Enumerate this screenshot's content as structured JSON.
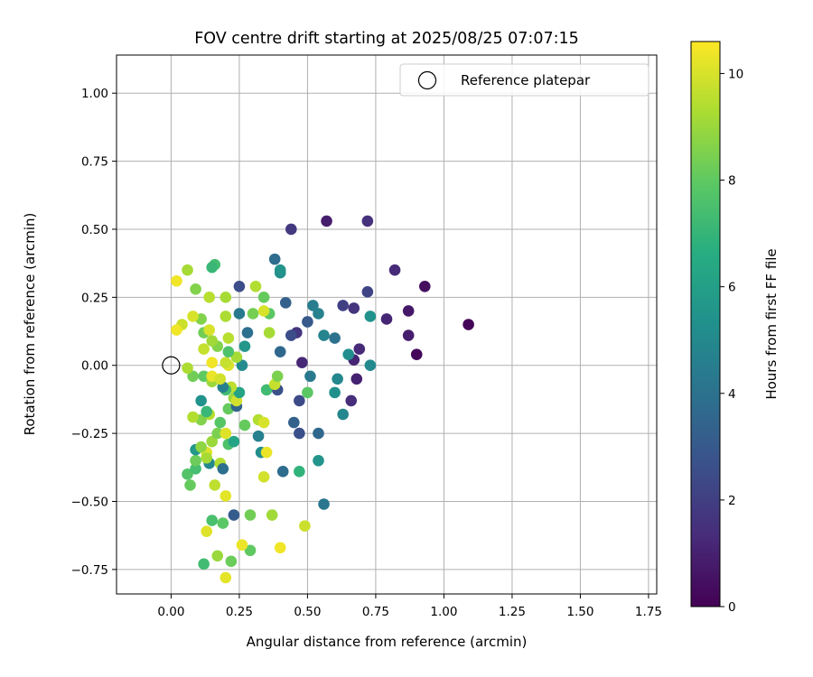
{
  "chart_data": {
    "type": "scatter",
    "title": "FOV centre drift starting at 2025/08/25 07:07:15",
    "xlabel": "Angular distance from reference (arcmin)",
    "ylabel": "Rotation from reference (arcmin)",
    "xlim": [
      -0.2,
      1.78
    ],
    "ylim": [
      -0.84,
      1.14
    ],
    "xticks": [
      0.0,
      0.25,
      0.5,
      0.75,
      1.0,
      1.25,
      1.5,
      1.75
    ],
    "xtick_labels": [
      "0.00",
      "0.25",
      "0.50",
      "0.75",
      "1.00",
      "1.25",
      "1.50",
      "1.75"
    ],
    "yticks": [
      -0.75,
      -0.5,
      -0.25,
      0.0,
      0.25,
      0.5,
      0.75,
      1.0
    ],
    "ytick_labels": [
      "−0.75",
      "−0.50",
      "−0.25",
      "0.00",
      "0.25",
      "0.50",
      "0.75",
      "1.00"
    ],
    "grid": true,
    "colormap": "viridis",
    "colorbar": {
      "label": "Hours from first FF file",
      "range": [
        0,
        10.6
      ],
      "ticks": [
        0,
        2,
        4,
        6,
        8,
        10
      ],
      "tick_labels": [
        "0",
        "2",
        "4",
        "6",
        "8",
        "10"
      ]
    },
    "legend": {
      "placement": "top-right",
      "entries": [
        {
          "label": "Reference platepar",
          "marker": "open-circle"
        }
      ]
    },
    "reference_point": {
      "x": 0.0,
      "y": 0.0
    },
    "points": [
      {
        "x": 1.09,
        "y": 0.15,
        "c": 0.1
      },
      {
        "x": 0.9,
        "y": 0.04,
        "c": 0.2
      },
      {
        "x": 0.93,
        "y": 0.29,
        "c": 0.4
      },
      {
        "x": 0.87,
        "y": 0.2,
        "c": 0.7
      },
      {
        "x": 0.87,
        "y": 0.11,
        "c": 0.9
      },
      {
        "x": 0.79,
        "y": 0.17,
        "c": 1.1
      },
      {
        "x": 0.82,
        "y": 0.35,
        "c": 1.3
      },
      {
        "x": 0.72,
        "y": 0.53,
        "c": 1.5
      },
      {
        "x": 0.57,
        "y": 0.53,
        "c": 0.9
      },
      {
        "x": 0.44,
        "y": 0.5,
        "c": 1.8
      },
      {
        "x": 0.69,
        "y": 0.06,
        "c": 1.3
      },
      {
        "x": 0.68,
        "y": -0.05,
        "c": 1.0
      },
      {
        "x": 0.67,
        "y": 0.02,
        "c": 1.1
      },
      {
        "x": 0.66,
        "y": -0.13,
        "c": 1.4
      },
      {
        "x": 0.67,
        "y": 0.21,
        "c": 1.6
      },
      {
        "x": 0.63,
        "y": 0.22,
        "c": 2.0
      },
      {
        "x": 0.72,
        "y": 0.27,
        "c": 2.2
      },
      {
        "x": 0.48,
        "y": 0.01,
        "c": 1.2
      },
      {
        "x": 0.47,
        "y": -0.13,
        "c": 2.4
      },
      {
        "x": 0.47,
        "y": -0.25,
        "c": 2.6
      },
      {
        "x": 0.45,
        "y": -0.21,
        "c": 3.3
      },
      {
        "x": 0.46,
        "y": 0.12,
        "c": 1.7
      },
      {
        "x": 0.44,
        "y": 0.11,
        "c": 2.5
      },
      {
        "x": 0.5,
        "y": 0.16,
        "c": 3.0
      },
      {
        "x": 0.54,
        "y": -0.25,
        "c": 3.6
      },
      {
        "x": 0.56,
        "y": -0.51,
        "c": 4.2
      },
      {
        "x": 0.41,
        "y": -0.39,
        "c": 3.8
      },
      {
        "x": 0.39,
        "y": -0.09,
        "c": 2.6
      },
      {
        "x": 0.4,
        "y": 0.05,
        "c": 3.6
      },
      {
        "x": 0.42,
        "y": 0.23,
        "c": 3.3
      },
      {
        "x": 0.38,
        "y": 0.39,
        "c": 3.8
      },
      {
        "x": 0.4,
        "y": 0.34,
        "c": 5.2
      },
      {
        "x": 0.4,
        "y": 0.35,
        "c": 5.5
      },
      {
        "x": 0.51,
        "y": -0.04,
        "c": 4.3
      },
      {
        "x": 0.52,
        "y": 0.22,
        "c": 4.5
      },
      {
        "x": 0.54,
        "y": 0.19,
        "c": 4.7
      },
      {
        "x": 0.56,
        "y": 0.11,
        "c": 4.8
      },
      {
        "x": 0.6,
        "y": 0.1,
        "c": 4.0
      },
      {
        "x": 0.61,
        "y": -0.05,
        "c": 4.9
      },
      {
        "x": 0.6,
        "y": -0.1,
        "c": 5.3
      },
      {
        "x": 0.63,
        "y": -0.18,
        "c": 4.9
      },
      {
        "x": 0.65,
        "y": 0.04,
        "c": 5.2
      },
      {
        "x": 0.73,
        "y": 0.18,
        "c": 5.4
      },
      {
        "x": 0.73,
        "y": 0.0,
        "c": 5.0
      },
      {
        "x": 0.54,
        "y": -0.35,
        "c": 5.5
      },
      {
        "x": 0.47,
        "y": -0.39,
        "c": 6.9
      },
      {
        "x": 0.5,
        "y": -0.1,
        "c": 7.9
      },
      {
        "x": 0.35,
        "y": -0.09,
        "c": 7.3
      },
      {
        "x": 0.36,
        "y": 0.19,
        "c": 7.9
      },
      {
        "x": 0.34,
        "y": 0.25,
        "c": 8.1
      },
      {
        "x": 0.3,
        "y": 0.19,
        "c": 8.4
      },
      {
        "x": 0.31,
        "y": 0.29,
        "c": 9.4
      },
      {
        "x": 0.34,
        "y": 0.2,
        "c": 10.0
      },
      {
        "x": 0.36,
        "y": 0.12,
        "c": 9.2
      },
      {
        "x": 0.38,
        "y": -0.07,
        "c": 9.7
      },
      {
        "x": 0.39,
        "y": -0.04,
        "c": 8.5
      },
      {
        "x": 0.33,
        "y": -0.32,
        "c": 5.2
      },
      {
        "x": 0.32,
        "y": -0.26,
        "c": 4.6
      },
      {
        "x": 0.35,
        "y": -0.32,
        "c": 10.3
      },
      {
        "x": 0.34,
        "y": -0.41,
        "c": 9.9
      },
      {
        "x": 0.32,
        "y": -0.2,
        "c": 9.4
      },
      {
        "x": 0.34,
        "y": -0.21,
        "c": 10.0
      },
      {
        "x": 0.37,
        "y": -0.55,
        "c": 9.1
      },
      {
        "x": 0.4,
        "y": -0.67,
        "c": 10.4
      },
      {
        "x": 0.49,
        "y": -0.59,
        "c": 9.8
      },
      {
        "x": 0.29,
        "y": -0.55,
        "c": 8.3
      },
      {
        "x": 0.29,
        "y": -0.68,
        "c": 8.0
      },
      {
        "x": 0.26,
        "y": -0.66,
        "c": 10.3
      },
      {
        "x": 0.22,
        "y": -0.72,
        "c": 8.2
      },
      {
        "x": 0.2,
        "y": -0.78,
        "c": 10.2
      },
      {
        "x": 0.17,
        "y": -0.7,
        "c": 9.0
      },
      {
        "x": 0.12,
        "y": -0.73,
        "c": 7.3
      },
      {
        "x": 0.15,
        "y": -0.57,
        "c": 7.5
      },
      {
        "x": 0.19,
        "y": -0.58,
        "c": 7.9
      },
      {
        "x": 0.13,
        "y": -0.61,
        "c": 10.1
      },
      {
        "x": 0.23,
        "y": -0.55,
        "c": 3.1
      },
      {
        "x": 0.2,
        "y": -0.48,
        "c": 10.2
      },
      {
        "x": 0.16,
        "y": -0.44,
        "c": 9.6
      },
      {
        "x": 0.07,
        "y": -0.44,
        "c": 8.1
      },
      {
        "x": 0.06,
        "y": -0.4,
        "c": 7.7
      },
      {
        "x": 0.09,
        "y": -0.38,
        "c": 7.4
      },
      {
        "x": 0.09,
        "y": -0.35,
        "c": 8.2
      },
      {
        "x": 0.09,
        "y": -0.31,
        "c": 5.6
      },
      {
        "x": 0.14,
        "y": -0.36,
        "c": 5.0
      },
      {
        "x": 0.18,
        "y": -0.36,
        "c": 9.4
      },
      {
        "x": 0.19,
        "y": -0.38,
        "c": 3.9
      },
      {
        "x": 0.13,
        "y": -0.32,
        "c": 10.1
      },
      {
        "x": 0.13,
        "y": -0.34,
        "c": 9.2
      },
      {
        "x": 0.11,
        "y": -0.3,
        "c": 8.8
      },
      {
        "x": 0.21,
        "y": -0.29,
        "c": 7.6
      },
      {
        "x": 0.23,
        "y": -0.28,
        "c": 6.2
      },
      {
        "x": 0.15,
        "y": -0.28,
        "c": 9.0
      },
      {
        "x": 0.17,
        "y": -0.25,
        "c": 8.5
      },
      {
        "x": 0.2,
        "y": -0.25,
        "c": 10.1
      },
      {
        "x": 0.18,
        "y": -0.21,
        "c": 7.8
      },
      {
        "x": 0.14,
        "y": -0.18,
        "c": 9.4
      },
      {
        "x": 0.11,
        "y": -0.2,
        "c": 8.6
      },
      {
        "x": 0.08,
        "y": -0.19,
        "c": 9.4
      },
      {
        "x": 0.13,
        "y": -0.17,
        "c": 7.1
      },
      {
        "x": 0.21,
        "y": -0.16,
        "c": 8.1
      },
      {
        "x": 0.24,
        "y": -0.15,
        "c": 3.5
      },
      {
        "x": 0.27,
        "y": -0.22,
        "c": 8.1
      },
      {
        "x": 0.23,
        "y": -0.12,
        "c": 9.0
      },
      {
        "x": 0.24,
        "y": -0.13,
        "c": 9.9
      },
      {
        "x": 0.25,
        "y": -0.1,
        "c": 6.2
      },
      {
        "x": 0.22,
        "y": -0.08,
        "c": 9.6
      },
      {
        "x": 0.2,
        "y": -0.09,
        "c": 7.3
      },
      {
        "x": 0.19,
        "y": -0.08,
        "c": 4.6
      },
      {
        "x": 0.11,
        "y": -0.13,
        "c": 5.4
      },
      {
        "x": 0.12,
        "y": -0.04,
        "c": 8.0
      },
      {
        "x": 0.08,
        "y": -0.04,
        "c": 8.3
      },
      {
        "x": 0.06,
        "y": -0.01,
        "c": 9.3
      },
      {
        "x": 0.15,
        "y": -0.06,
        "c": 9.0
      },
      {
        "x": 0.15,
        "y": -0.04,
        "c": 10.3
      },
      {
        "x": 0.18,
        "y": -0.05,
        "c": 9.9
      },
      {
        "x": 0.21,
        "y": 0.0,
        "c": 10.1
      },
      {
        "x": 0.2,
        "y": 0.01,
        "c": 9.7
      },
      {
        "x": 0.15,
        "y": 0.01,
        "c": 10.4
      },
      {
        "x": 0.26,
        "y": 0.0,
        "c": 5.1
      },
      {
        "x": 0.24,
        "y": 0.03,
        "c": 9.2
      },
      {
        "x": 0.21,
        "y": 0.05,
        "c": 7.6
      },
      {
        "x": 0.12,
        "y": 0.06,
        "c": 9.7
      },
      {
        "x": 0.17,
        "y": 0.07,
        "c": 8.6
      },
      {
        "x": 0.15,
        "y": 0.09,
        "c": 9.1
      },
      {
        "x": 0.27,
        "y": 0.07,
        "c": 5.6
      },
      {
        "x": 0.28,
        "y": 0.12,
        "c": 3.9
      },
      {
        "x": 0.21,
        "y": 0.1,
        "c": 9.5
      },
      {
        "x": 0.12,
        "y": 0.12,
        "c": 8.3
      },
      {
        "x": 0.14,
        "y": 0.13,
        "c": 10.0
      },
      {
        "x": 0.11,
        "y": 0.17,
        "c": 8.6
      },
      {
        "x": 0.08,
        "y": 0.18,
        "c": 10.0
      },
      {
        "x": 0.04,
        "y": 0.15,
        "c": 9.8
      },
      {
        "x": 0.02,
        "y": 0.13,
        "c": 10.4
      },
      {
        "x": 0.25,
        "y": 0.19,
        "c": 4.3
      },
      {
        "x": 0.2,
        "y": 0.18,
        "c": 9.3
      },
      {
        "x": 0.14,
        "y": 0.25,
        "c": 9.5
      },
      {
        "x": 0.2,
        "y": 0.25,
        "c": 9.2
      },
      {
        "x": 0.25,
        "y": 0.29,
        "c": 2.5
      },
      {
        "x": 0.09,
        "y": 0.28,
        "c": 8.6
      },
      {
        "x": 0.02,
        "y": 0.31,
        "c": 10.4
      },
      {
        "x": 0.06,
        "y": 0.35,
        "c": 9.2
      },
      {
        "x": 0.16,
        "y": 0.37,
        "c": 7.4
      },
      {
        "x": 0.15,
        "y": 0.36,
        "c": 7.1
      }
    ]
  }
}
